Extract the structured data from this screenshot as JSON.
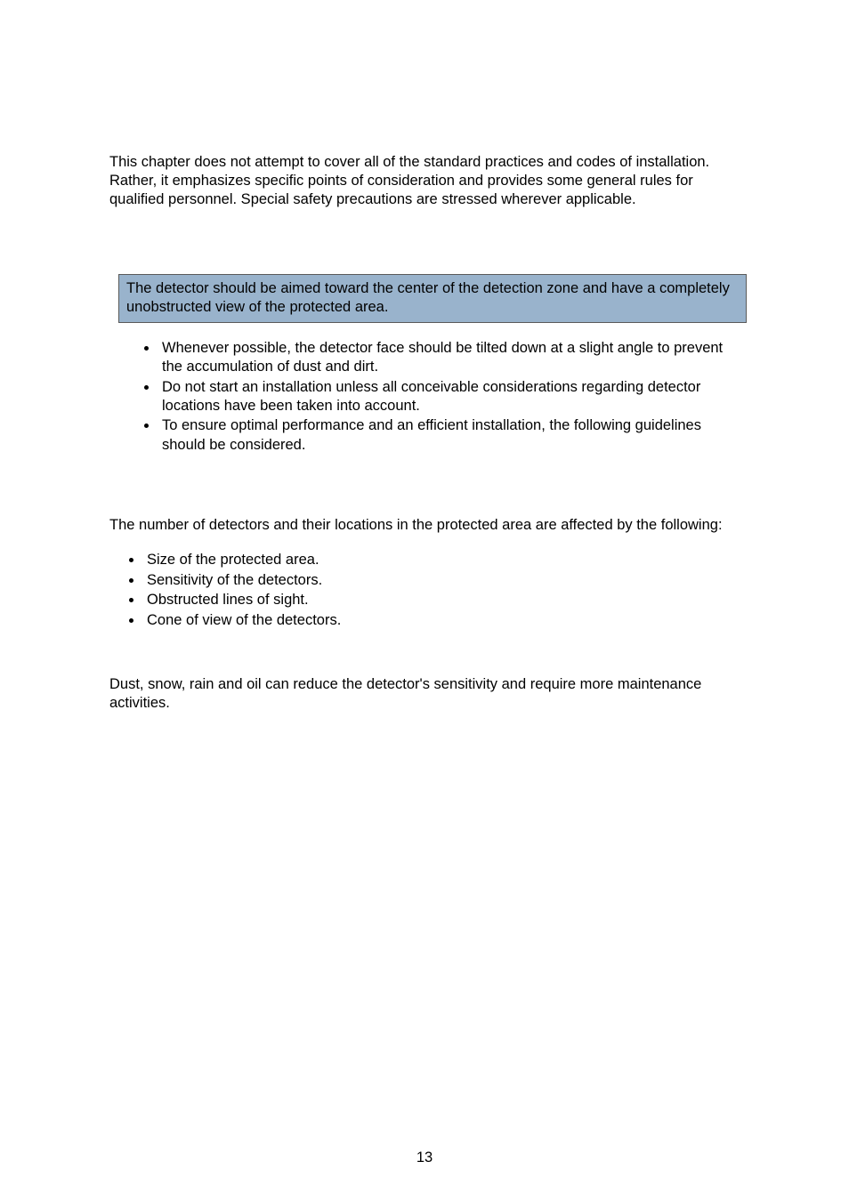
{
  "intro": "This chapter does not attempt to cover all of the standard practices and codes of installation. Rather, it emphasizes specific points of consideration and provides some general rules for qualified personnel. Special safety precautions are stressed wherever applicable.",
  "callout": "The detector should be aimed toward the center of the detection zone and have a completely unobstructed view of the protected area.",
  "bullets1": [
    "Whenever possible, the detector face should be tilted down at a slight angle to prevent the accumulation of dust and dirt.",
    "Do not start an installation unless all conceivable considerations regarding detector locations have been taken into account.",
    "To ensure optimal performance and an efficient installation, the following guidelines should be considered."
  ],
  "para2": "The number of detectors and their locations in the protected area are affected by the following:",
  "bullets2": [
    "Size of the protected area.",
    "Sensitivity of the detectors.",
    "Obstructed lines of sight.",
    "Cone of view of the detectors."
  ],
  "para3": "Dust, snow, rain and oil can reduce the detector's sensitivity and require more maintenance activities.",
  "page_number": "13",
  "colors": {
    "callout_bg": "#99b3cc",
    "callout_border": "#5a5a5a",
    "text": "#000000",
    "background": "#ffffff"
  }
}
